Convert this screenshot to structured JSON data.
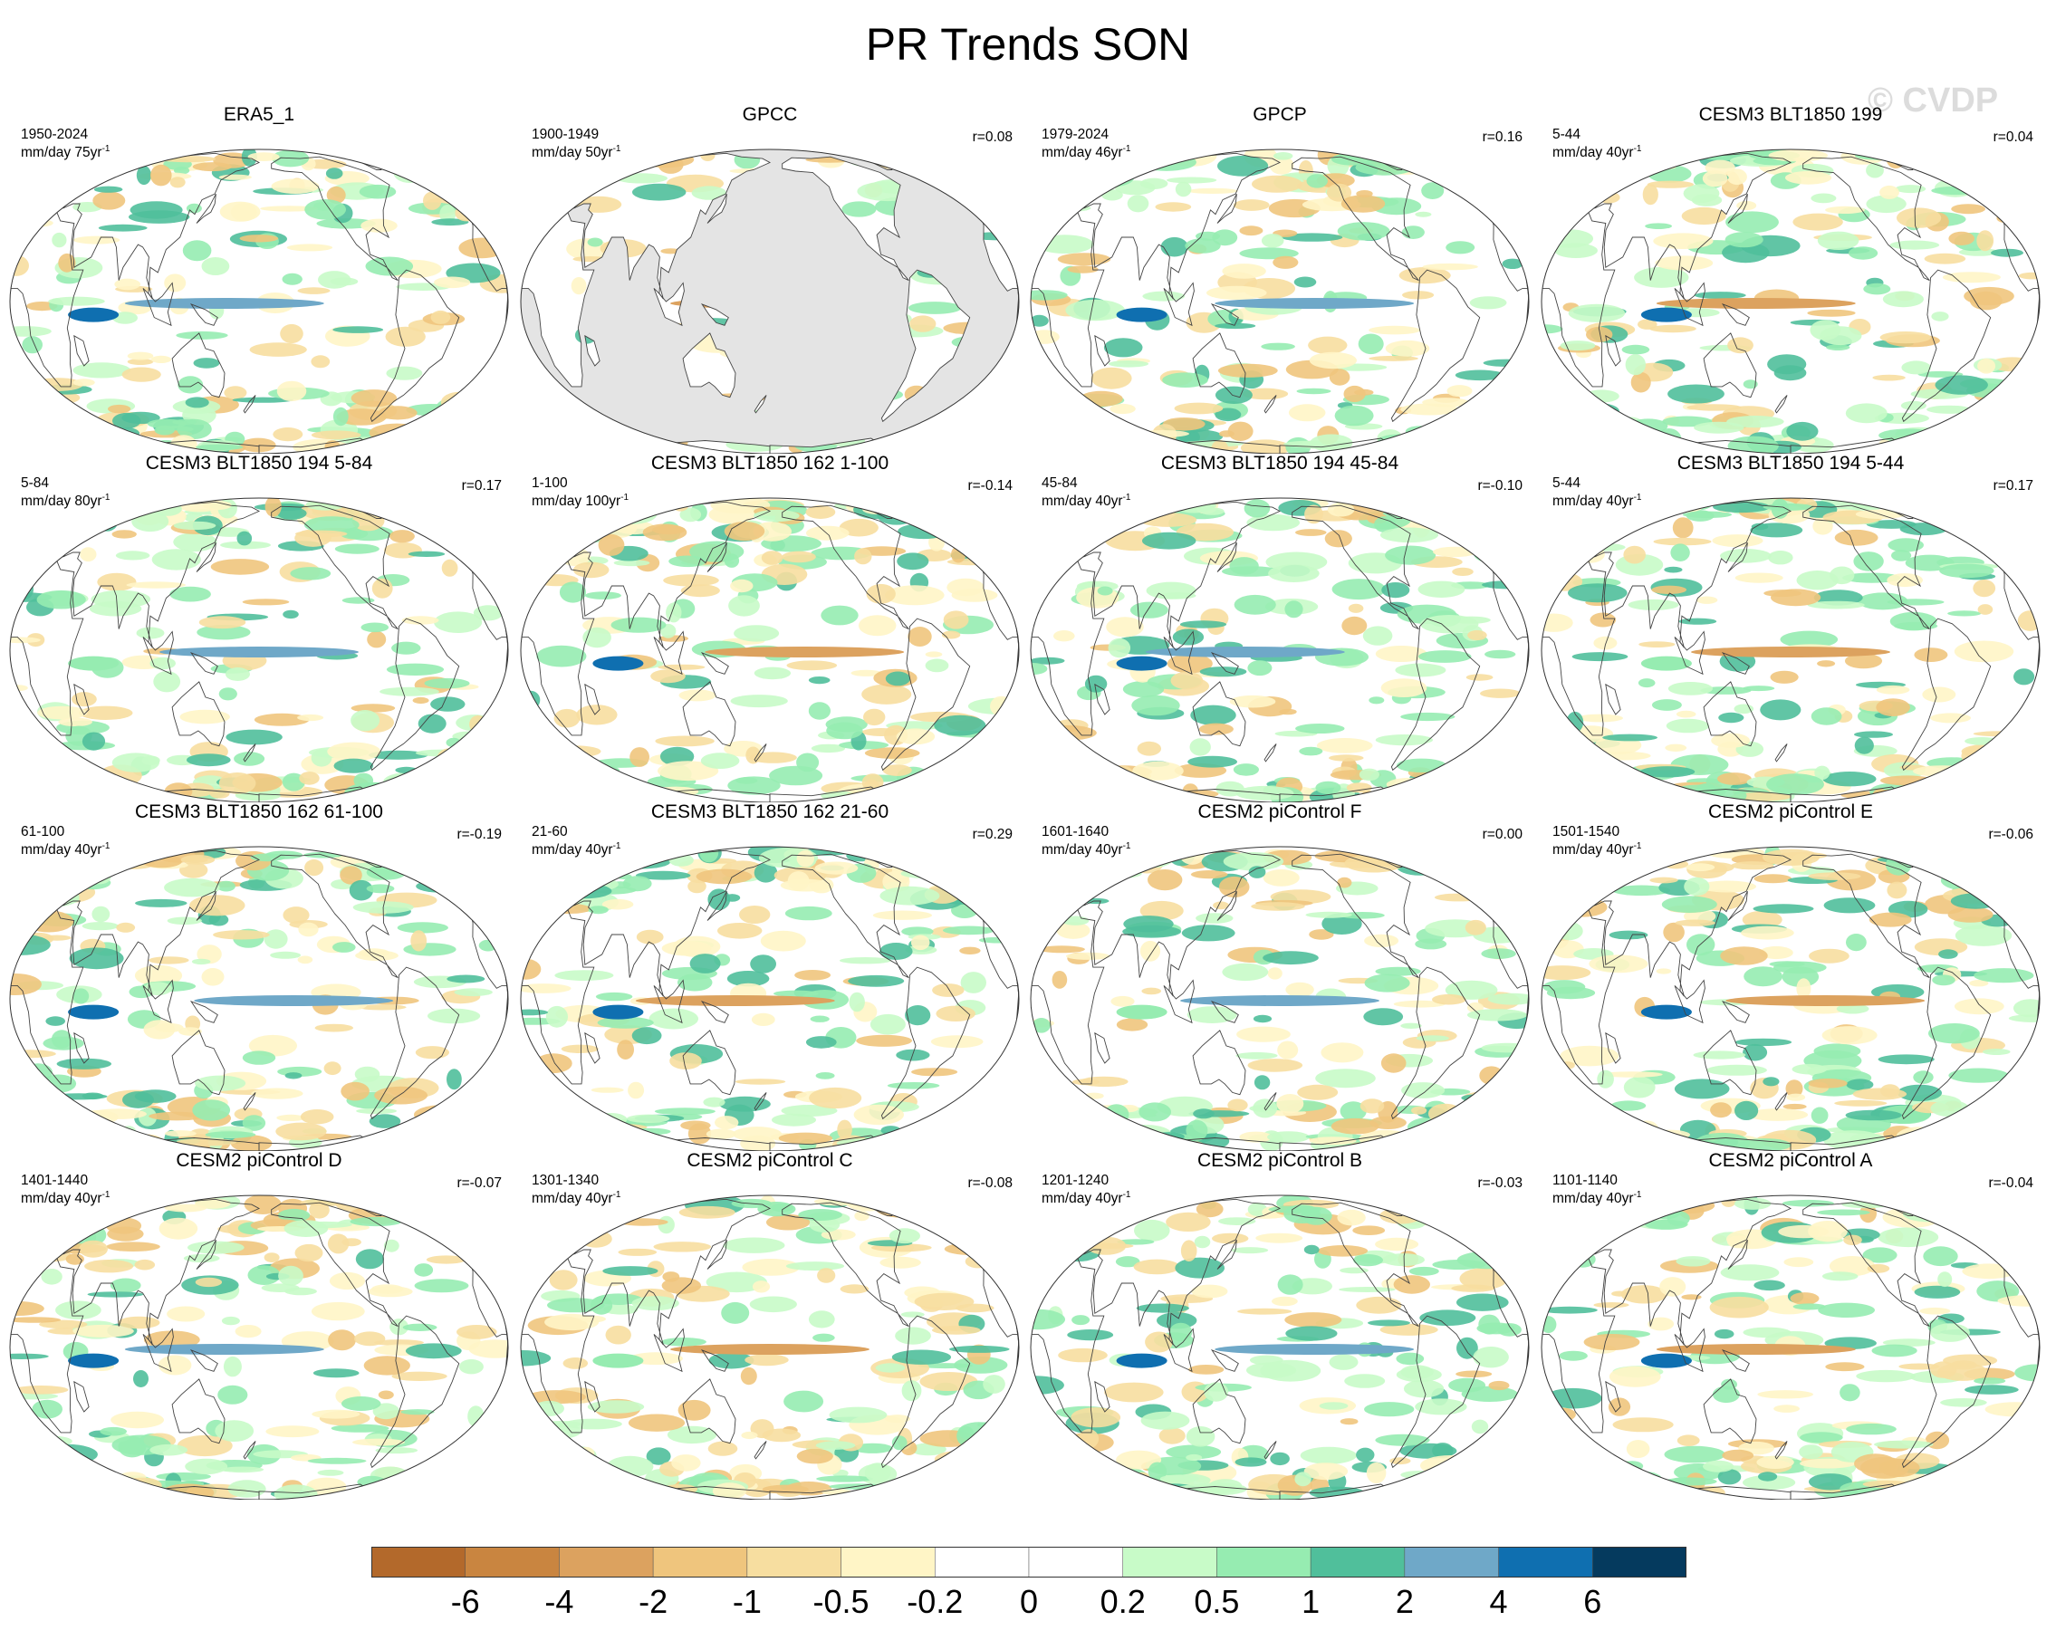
{
  "figure": {
    "title": "PR Trends SON",
    "watermark": "© CVDP"
  },
  "panels": [
    {
      "title": "ERA5_1",
      "years": "1950-2024",
      "units": "mm/day 75yr",
      "corr": "",
      "masked_ocean": false,
      "pattern": 0
    },
    {
      "title": "GPCC",
      "years": "1900-1949",
      "units": "mm/day 50yr",
      "corr": "r=0.08",
      "masked_ocean": true,
      "pattern": 1
    },
    {
      "title": "GPCP",
      "years": "1979-2024",
      "units": "mm/day 46yr",
      "corr": "r=0.16",
      "masked_ocean": false,
      "pattern": 2
    },
    {
      "title": "CESM3 BLT1850 199",
      "years": "5-44",
      "units": "mm/day 40yr",
      "corr": "r=0.04",
      "masked_ocean": false,
      "pattern": 3
    },
    {
      "title": "CESM3 BLT1850 194 5-84",
      "years": "5-84",
      "units": "mm/day 80yr",
      "corr": "r=0.17",
      "masked_ocean": false,
      "pattern": 4
    },
    {
      "title": "CESM3 BLT1850 162 1-100",
      "years": "1-100",
      "units": "mm/day 100yr",
      "corr": "r=-0.14",
      "masked_ocean": false,
      "pattern": 5
    },
    {
      "title": "CESM3 BLT1850 194 45-84",
      "years": "45-84",
      "units": "mm/day 40yr",
      "corr": "r=-0.10",
      "masked_ocean": false,
      "pattern": 6
    },
    {
      "title": "CESM3 BLT1850 194 5-44",
      "years": "5-44",
      "units": "mm/day 40yr",
      "corr": "r=0.17",
      "masked_ocean": false,
      "pattern": 7
    },
    {
      "title": "CESM3 BLT1850 162 61-100",
      "years": "61-100",
      "units": "mm/day 40yr",
      "corr": "r=-0.19",
      "masked_ocean": false,
      "pattern": 8
    },
    {
      "title": "CESM3 BLT1850 162 21-60",
      "years": "21-60",
      "units": "mm/day 40yr",
      "corr": "r=0.29",
      "masked_ocean": false,
      "pattern": 9
    },
    {
      "title": "CESM2 piControl F",
      "years": "1601-1640",
      "units": "mm/day 40yr",
      "corr": "r=0.00",
      "masked_ocean": false,
      "pattern": 10
    },
    {
      "title": "CESM2 piControl E",
      "years": "1501-1540",
      "units": "mm/day 40yr",
      "corr": "r=-0.06",
      "masked_ocean": false,
      "pattern": 11
    },
    {
      "title": "CESM2 piControl D",
      "years": "1401-1440",
      "units": "mm/day 40yr",
      "corr": "r=-0.07",
      "masked_ocean": false,
      "pattern": 12
    },
    {
      "title": "CESM2 piControl C",
      "years": "1301-1340",
      "units": "mm/day 40yr",
      "corr": "r=-0.08",
      "masked_ocean": false,
      "pattern": 13
    },
    {
      "title": "CESM2 piControl B",
      "years": "1201-1240",
      "units": "mm/day 40yr",
      "corr": "r=-0.03",
      "masked_ocean": false,
      "pattern": 14
    },
    {
      "title": "CESM2 piControl A",
      "years": "1101-1140",
      "units": "mm/day 40yr",
      "corr": "r=-0.04",
      "masked_ocean": false,
      "pattern": 15
    }
  ],
  "units_exponent": "-1",
  "colorbar": {
    "labels": [
      "-6",
      "-4",
      "-2",
      "-1",
      "-0.5",
      "-0.2",
      "0",
      "0.2",
      "0.5",
      "1",
      "2",
      "4",
      "6"
    ],
    "colors": [
      "#b3692b",
      "#c98540",
      "#dca25f",
      "#efc57d",
      "#f7dea0",
      "#fff5c6",
      "#ffffff",
      "#ffffff",
      "#c8fbc8",
      "#96ecb1",
      "#50bf9b",
      "#6fa8c8",
      "#0f6fb0",
      "#053a5e"
    ]
  },
  "land_color": "#e4e4e4",
  "outline_color": "#444444"
}
